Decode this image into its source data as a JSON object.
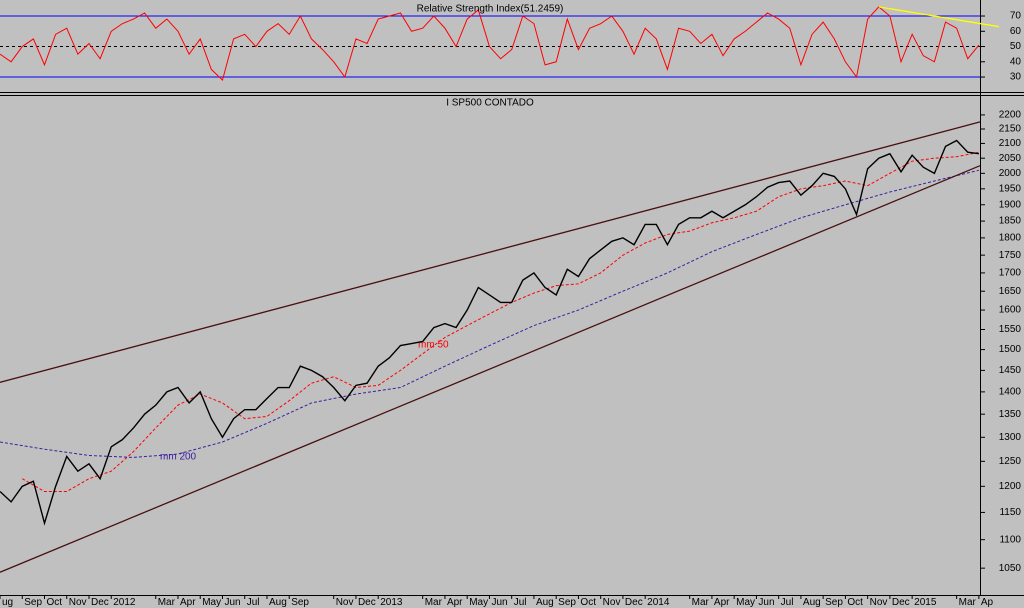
{
  "chart_data": [
    {
      "type": "line",
      "title": "Relative Strength Index(51.2459)",
      "color": "#ff0000",
      "x": [
        0,
        0.5,
        1,
        1.5,
        2,
        2.5,
        3,
        3.5,
        4,
        4.5,
        5,
        5.5,
        6,
        6.5,
        7,
        7.5,
        8,
        8.5,
        9,
        9.5,
        10,
        10.5,
        11,
        11.5,
        12,
        12.5,
        13,
        13.5,
        14,
        14.5,
        15,
        15.5,
        16,
        16.5,
        17,
        17.5,
        18,
        18.5,
        19,
        19.5,
        20,
        20.5,
        21,
        21.5,
        22,
        22.5,
        23,
        23.5,
        24,
        24.5,
        25,
        25.5,
        26,
        26.5,
        27,
        27.5,
        28,
        28.5,
        29,
        29.5,
        30,
        30.5,
        31,
        31.5,
        32,
        32.5,
        33,
        33.5,
        34,
        34.5,
        35,
        35.5,
        36,
        36.5,
        37,
        37.5,
        38,
        38.5,
        39,
        39.5,
        40,
        40.5,
        41,
        41.5,
        42,
        42.5,
        43,
        43.5,
        44
      ],
      "values": [
        45,
        40,
        50,
        55,
        38,
        58,
        62,
        45,
        52,
        42,
        60,
        65,
        68,
        72,
        62,
        68,
        60,
        45,
        55,
        35,
        28,
        55,
        58,
        50,
        60,
        65,
        58,
        70,
        55,
        48,
        40,
        30,
        55,
        52,
        68,
        70,
        72,
        60,
        62,
        70,
        62,
        50,
        68,
        74,
        50,
        42,
        48,
        70,
        65,
        38,
        40,
        68,
        48,
        62,
        65,
        70,
        60,
        45,
        62,
        55,
        35,
        62,
        60,
        52,
        58,
        44,
        55,
        60,
        66,
        72,
        68,
        62,
        38,
        58,
        66,
        55,
        40,
        30,
        68,
        76,
        70,
        40,
        58,
        44,
        40,
        66,
        62,
        42,
        51
      ],
      "xlim": [
        0,
        44.05
      ],
      "ylim": [
        20.2,
        80.5
      ],
      "yticks": [
        30,
        40,
        50,
        60,
        70
      ],
      "reference_lines": [
        {
          "value": 70,
          "color": "#0000ff",
          "dashed": false
        },
        {
          "value": 50,
          "color": "#000000",
          "dashed": true
        },
        {
          "value": 30,
          "color": "#0000ff",
          "dashed": false
        }
      ],
      "trendlines": [
        {
          "x": [
            39.5,
            44.9
          ],
          "values": [
            76,
            63
          ],
          "color": "#ffff00"
        }
      ]
    },
    {
      "type": "line",
      "title": "I SP500 CONTADO",
      "color": "#000000",
      "log": true,
      "x": [
        0,
        0.5,
        1,
        1.5,
        2,
        2.5,
        3,
        3.5,
        4,
        4.5,
        5,
        5.5,
        6,
        6.5,
        7,
        7.5,
        8,
        8.5,
        9,
        9.5,
        10,
        10.5,
        11,
        11.5,
        12,
        12.5,
        13,
        13.5,
        14,
        14.5,
        15,
        15.5,
        16,
        16.5,
        17,
        17.5,
        18,
        18.5,
        19,
        19.5,
        20,
        20.5,
        21,
        21.5,
        22,
        22.5,
        23,
        23.5,
        24,
        24.5,
        25,
        25.5,
        26,
        26.5,
        27,
        27.5,
        28,
        28.5,
        29,
        29.5,
        30,
        30.5,
        31,
        31.5,
        32,
        32.5,
        33,
        33.5,
        34,
        34.5,
        35,
        35.5,
        36,
        36.5,
        37,
        37.5,
        38,
        38.5,
        39,
        39.5,
        40,
        40.5,
        41,
        41.5,
        42,
        42.5,
        43,
        43.5,
        44
      ],
      "values": [
        1190,
        1170,
        1200,
        1210,
        1130,
        1200,
        1260,
        1230,
        1245,
        1215,
        1280,
        1295,
        1320,
        1350,
        1370,
        1400,
        1410,
        1375,
        1400,
        1340,
        1300,
        1340,
        1360,
        1360,
        1385,
        1410,
        1410,
        1460,
        1450,
        1435,
        1410,
        1380,
        1415,
        1420,
        1460,
        1480,
        1510,
        1515,
        1520,
        1555,
        1565,
        1555,
        1600,
        1660,
        1640,
        1620,
        1620,
        1680,
        1700,
        1660,
        1640,
        1710,
        1690,
        1740,
        1765,
        1790,
        1800,
        1780,
        1840,
        1840,
        1780,
        1840,
        1860,
        1860,
        1880,
        1860,
        1880,
        1900,
        1925,
        1955,
        1970,
        1975,
        1930,
        1960,
        2000,
        1990,
        1950,
        1870,
        2015,
        2050,
        2065,
        2005,
        2060,
        2020,
        2000,
        2090,
        2110,
        2070,
        2065
      ],
      "xlim": [
        0,
        44.05
      ],
      "ylim": [
        1005,
        2269
      ],
      "yticks": [
        1050,
        1100,
        1150,
        1200,
        1250,
        1300,
        1350,
        1400,
        1450,
        1500,
        1550,
        1600,
        1650,
        1700,
        1750,
        1800,
        1850,
        1900,
        1950,
        2000,
        2050,
        2100,
        2150,
        2200
      ],
      "xticks": [
        {
          "value": 0,
          "label": "ug"
        },
        {
          "value": 1,
          "label": "Sep"
        },
        {
          "value": 2,
          "label": "Oct"
        },
        {
          "value": 3,
          "label": "Nov"
        },
        {
          "value": 4,
          "label": "Dec"
        },
        {
          "value": 5,
          "label": "2012"
        },
        {
          "value": 7,
          "label": "Mar"
        },
        {
          "value": 8,
          "label": "Apr"
        },
        {
          "value": 9,
          "label": "May"
        },
        {
          "value": 10,
          "label": "Jun"
        },
        {
          "value": 11,
          "label": "Jul"
        },
        {
          "value": 12,
          "label": "Aug"
        },
        {
          "value": 13,
          "label": "Sep"
        },
        {
          "value": 15,
          "label": "Nov"
        },
        {
          "value": 16,
          "label": "Dec"
        },
        {
          "value": 17,
          "label": "2013"
        },
        {
          "value": 19,
          "label": "Mar"
        },
        {
          "value": 20,
          "label": "Apr"
        },
        {
          "value": 21,
          "label": "May"
        },
        {
          "value": 22,
          "label": "Jun"
        },
        {
          "value": 23,
          "label": "Jul"
        },
        {
          "value": 24,
          "label": "Aug"
        },
        {
          "value": 25,
          "label": "Sep"
        },
        {
          "value": 26,
          "label": "Oct"
        },
        {
          "value": 27,
          "label": "Nov"
        },
        {
          "value": 28,
          "label": "Dec"
        },
        {
          "value": 29,
          "label": "2014"
        },
        {
          "value": 31,
          "label": "Mar"
        },
        {
          "value": 32,
          "label": "Apr"
        },
        {
          "value": 33,
          "label": "May"
        },
        {
          "value": 34,
          "label": "Jun"
        },
        {
          "value": 35,
          "label": "Jul"
        },
        {
          "value": 36,
          "label": "Aug"
        },
        {
          "value": 37,
          "label": "Sep"
        },
        {
          "value": 38,
          "label": "Oct"
        },
        {
          "value": 39,
          "label": "Nov"
        },
        {
          "value": 40,
          "label": "Dec"
        },
        {
          "value": 41,
          "label": "2015"
        },
        {
          "value": 43,
          "label": "Mar"
        },
        {
          "value": 44,
          "label": "Ap"
        }
      ],
      "moving_averages": [
        {
          "label": "mm 50",
          "color": "#ff0000",
          "dashed": true,
          "x": [
            1,
            2,
            3,
            4,
            5,
            6,
            7,
            8,
            9,
            10,
            11,
            12,
            13,
            14,
            15,
            16,
            17,
            18,
            19,
            20,
            21,
            22,
            23,
            24,
            25,
            26,
            27,
            28,
            29,
            30,
            31,
            32,
            33,
            34,
            35,
            36,
            37,
            38,
            39,
            40,
            41,
            42,
            43,
            44
          ],
          "values": [
            1215,
            1190,
            1190,
            1215,
            1230,
            1270,
            1320,
            1370,
            1395,
            1375,
            1340,
            1345,
            1380,
            1420,
            1435,
            1410,
            1415,
            1450,
            1490,
            1530,
            1560,
            1590,
            1620,
            1645,
            1665,
            1670,
            1700,
            1750,
            1785,
            1810,
            1820,
            1845,
            1860,
            1880,
            1925,
            1950,
            1960,
            1975,
            1960,
            2000,
            2040,
            2050,
            2055,
            2070
          ]
        },
        {
          "label": "mm 200",
          "color": "#3a1fa0",
          "dashed": true,
          "x": [
            0,
            2,
            4,
            6,
            8,
            10,
            12,
            14,
            16,
            18,
            20,
            22,
            24,
            26,
            28,
            30,
            32,
            34,
            36,
            38,
            40,
            42,
            44
          ],
          "values": [
            1290,
            1275,
            1262,
            1258,
            1265,
            1290,
            1330,
            1375,
            1395,
            1410,
            1460,
            1510,
            1560,
            1600,
            1650,
            1700,
            1760,
            1810,
            1860,
            1900,
            1940,
            1975,
            2010
          ]
        }
      ],
      "trendlines": [
        {
          "x": [
            0,
            44.05
          ],
          "values": [
            1422,
            2175
          ],
          "color": "#4a1010"
        },
        {
          "x": [
            0,
            44.05
          ],
          "values": [
            1043,
            2025
          ],
          "color": "#4a1010"
        }
      ]
    }
  ]
}
